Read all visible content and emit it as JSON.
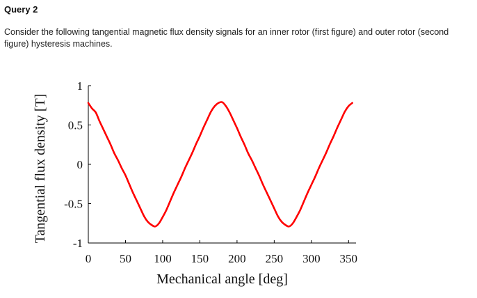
{
  "header": {
    "title": "Query 2",
    "description": "Consider the following tangential magnetic flux density signals for an inner rotor (first figure) and outer rotor (second figure) hysteresis machines."
  },
  "chart_data": {
    "type": "line",
    "title": "",
    "xlabel": "Mechanical angle [deg]",
    "ylabel": "Tangential flux density [T]",
    "xlim": [
      0,
      360
    ],
    "ylim": [
      -1,
      1
    ],
    "xticks": [
      0,
      50,
      100,
      150,
      200,
      250,
      300,
      350
    ],
    "xtick_labels": [
      "0",
      "50",
      "100",
      "150",
      "200",
      "250",
      "300",
      "350"
    ],
    "yticks": [
      1,
      0.5,
      0,
      -0.5,
      -1
    ],
    "ytick_labels": [
      "1",
      "0.5",
      "0",
      "-0.5",
      "-1"
    ],
    "grid": false,
    "series": [
      {
        "color": "#ff0000",
        "x": [
          0,
          5,
          10,
          15,
          20,
          25,
          30,
          35,
          40,
          45,
          50,
          55,
          60,
          65,
          70,
          75,
          80,
          85,
          90,
          95,
          100,
          105,
          110,
          115,
          120,
          125,
          130,
          135,
          140,
          145,
          150,
          155,
          160,
          165,
          170,
          175,
          180,
          185,
          190,
          195,
          200,
          205,
          210,
          215,
          220,
          225,
          230,
          235,
          240,
          245,
          250,
          255,
          260,
          265,
          270,
          275,
          280,
          285,
          290,
          295,
          300,
          305,
          310,
          315,
          320,
          325,
          330,
          335,
          340,
          345,
          350,
          355
        ],
        "values": [
          0.78,
          0.71,
          0.66,
          0.55,
          0.45,
          0.35,
          0.25,
          0.14,
          0.05,
          -0.05,
          -0.14,
          -0.25,
          -0.36,
          -0.46,
          -0.56,
          -0.66,
          -0.73,
          -0.77,
          -0.79,
          -0.75,
          -0.67,
          -0.58,
          -0.47,
          -0.36,
          -0.26,
          -0.16,
          -0.05,
          0.05,
          0.15,
          0.26,
          0.36,
          0.47,
          0.57,
          0.67,
          0.74,
          0.78,
          0.79,
          0.74,
          0.66,
          0.56,
          0.46,
          0.35,
          0.25,
          0.14,
          0.05,
          -0.05,
          -0.15,
          -0.26,
          -0.36,
          -0.46,
          -0.56,
          -0.66,
          -0.73,
          -0.77,
          -0.79,
          -0.75,
          -0.67,
          -0.58,
          -0.47,
          -0.36,
          -0.26,
          -0.16,
          -0.05,
          0.05,
          0.15,
          0.26,
          0.36,
          0.47,
          0.57,
          0.67,
          0.74,
          0.78
        ]
      }
    ]
  },
  "colors": {
    "axis": "#000000",
    "line": "#ff0000"
  }
}
